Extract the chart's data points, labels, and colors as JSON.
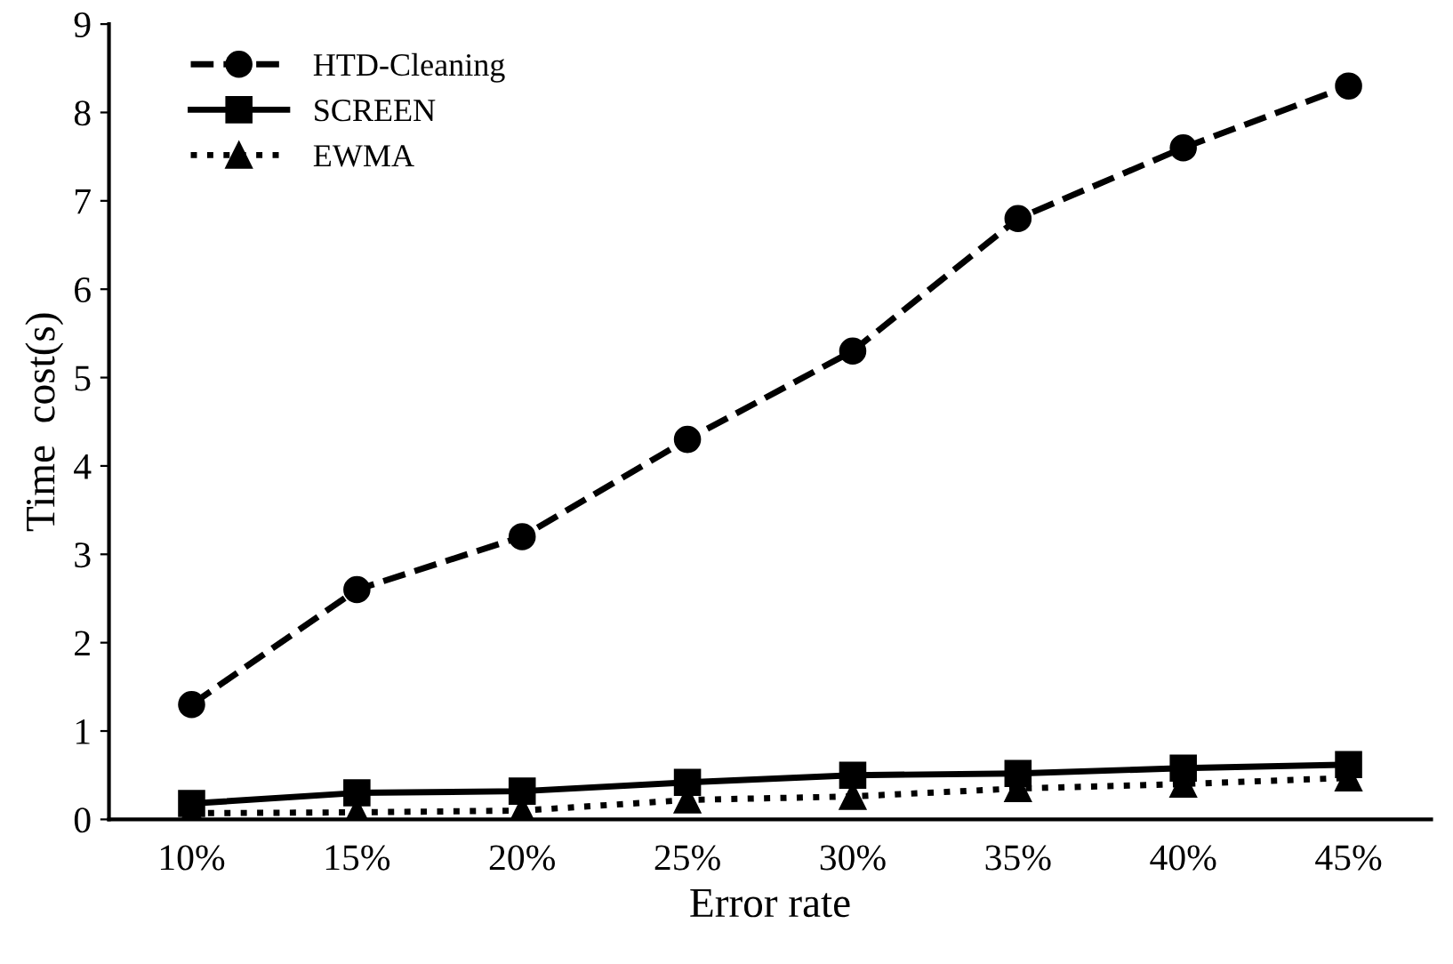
{
  "chart_data": {
    "type": "line",
    "xlabel": "Error rate",
    "ylabel": "Time  cost(s)",
    "categories": [
      "10%",
      "15%",
      "20%",
      "25%",
      "30%",
      "35%",
      "40%",
      "45%"
    ],
    "ylim": [
      0,
      9
    ],
    "yticks": [
      0,
      1,
      2,
      3,
      4,
      5,
      6,
      7,
      8,
      9
    ],
    "grid": false,
    "legend": "top left",
    "series": [
      {
        "name": "HTD-Cleaning",
        "color": "#000000",
        "marker": "circle",
        "line_style": "dashed",
        "values": [
          1.3,
          2.6,
          3.2,
          4.3,
          5.3,
          6.8,
          7.6,
          8.3
        ]
      },
      {
        "name": "SCREEN",
        "color": "#000000",
        "marker": "square",
        "line_style": "solid",
        "values": [
          0.18,
          0.3,
          0.32,
          0.42,
          0.5,
          0.52,
          0.58,
          0.62
        ]
      },
      {
        "name": "EWMA",
        "color": "#000000",
        "marker": "triangle",
        "line_style": "dotted",
        "values": [
          0.07,
          0.08,
          0.1,
          0.22,
          0.26,
          0.35,
          0.4,
          0.47
        ]
      }
    ]
  }
}
